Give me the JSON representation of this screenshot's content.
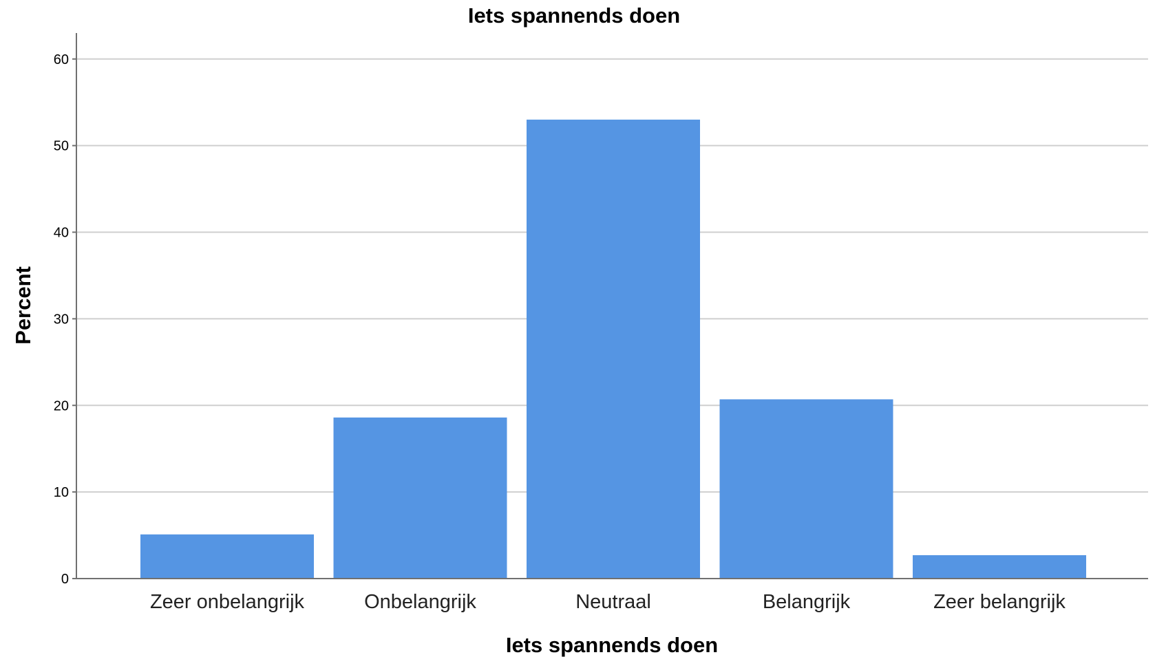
{
  "chart_data": {
    "type": "bar",
    "title": "Iets spannends doen",
    "xlabel": "Iets spannends doen",
    "ylabel": "Percent",
    "categories": [
      "Zeer onbelangrijk",
      "Onbelangrijk",
      "Neutraal",
      "Belangrijk",
      "Zeer belangrijk"
    ],
    "values": [
      5.1,
      18.6,
      53.0,
      20.7,
      2.7
    ],
    "ylim": [
      0,
      63
    ],
    "yticks": [
      0,
      10,
      20,
      30,
      40,
      50,
      60
    ],
    "grid": true,
    "bar_color": "#5595e3",
    "legend": null
  }
}
